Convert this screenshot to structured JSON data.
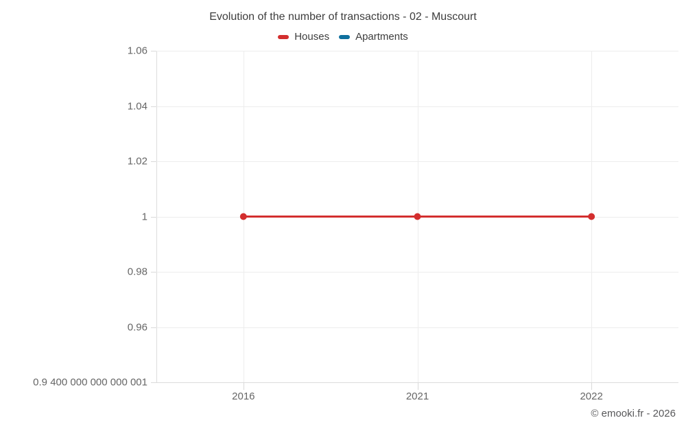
{
  "chart": {
    "title": "Evolution of the number of transactions - 02 - Muscourt",
    "watermark": "© emooki.fr - 2026"
  },
  "chart_data": {
    "type": "line",
    "title": "Evolution of the number of transactions - 02 - Muscourt",
    "categories": [
      "2016",
      "2021",
      "2022"
    ],
    "series": [
      {
        "name": "Houses",
        "color": "#d32e2e",
        "values": [
          1,
          1,
          1
        ]
      },
      {
        "name": "Apartments",
        "color": "#0f709e",
        "values": []
      }
    ],
    "xlabel": "",
    "ylabel": "",
    "ylim": [
      0.9400000000000001,
      1.06
    ],
    "yticks": [
      {
        "value": 1.06,
        "label": "1.06"
      },
      {
        "value": 1.04,
        "label": "1.04"
      },
      {
        "value": 1.02,
        "label": "1.02"
      },
      {
        "value": 1.0,
        "label": "1"
      },
      {
        "value": 0.98,
        "label": "0.98"
      },
      {
        "value": 0.96,
        "label": "0.96"
      },
      {
        "value": 0.9400000000000001,
        "label": "0.9 400 000 000 000 001"
      }
    ],
    "grid": true,
    "legend_position": "top",
    "marker": "circle",
    "annotations": []
  }
}
